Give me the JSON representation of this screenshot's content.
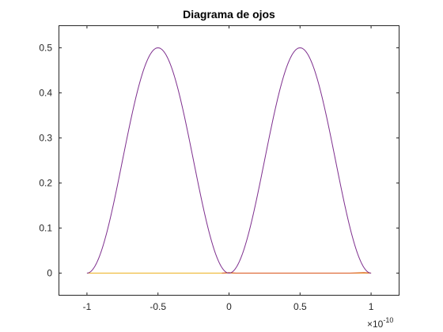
{
  "chart_data": {
    "type": "line",
    "title": "Diagrama de ojos",
    "xlabel": "",
    "ylabel": "",
    "xlim": [
      -1.2,
      1.2
    ],
    "ylim": [
      -0.05,
      0.55
    ],
    "x_exponent": "×10",
    "x_exponent_power": "-10",
    "x_exponent_value": -10,
    "xticks": [
      -1,
      -0.5,
      0,
      0.5,
      1
    ],
    "xtick_labels": [
      "-1",
      "-0.5",
      "0",
      "0.5",
      "1"
    ],
    "yticks": [
      0,
      0.1,
      0.2,
      0.3,
      0.4,
      0.5
    ],
    "ytick_labels": [
      "0",
      "0.1",
      "0.2",
      "0.3",
      "0.4",
      "0.5"
    ],
    "grid": false,
    "series": [
      {
        "color": "#7E2F8E",
        "x": [
          -1.0,
          -0.9,
          -0.8,
          -0.75,
          -0.7,
          -0.6,
          -0.5,
          -0.4,
          -0.3,
          -0.25,
          -0.2,
          -0.1,
          0.0,
          0.1,
          0.2,
          0.25,
          0.3,
          0.4,
          0.5,
          0.6,
          0.7,
          0.75,
          0.8,
          0.9,
          1.0
        ],
        "y": [
          0.0,
          0.048,
          0.173,
          0.25,
          0.327,
          0.452,
          0.5,
          0.452,
          0.327,
          0.25,
          0.173,
          0.048,
          0.0,
          0.048,
          0.173,
          0.25,
          0.327,
          0.452,
          0.5,
          0.452,
          0.327,
          0.25,
          0.173,
          0.048,
          0.0
        ]
      },
      {
        "color": "#EDB120",
        "x": [
          -1.0,
          1.0
        ],
        "y": [
          0.0,
          0.0
        ]
      },
      {
        "color": "#D95319",
        "x": [
          -0.05,
          0.0,
          0.05,
          0.85,
          0.95,
          1.0
        ],
        "y": [
          0.0,
          0.001,
          0.0,
          0.0,
          0.001,
          0.0
        ]
      }
    ]
  }
}
